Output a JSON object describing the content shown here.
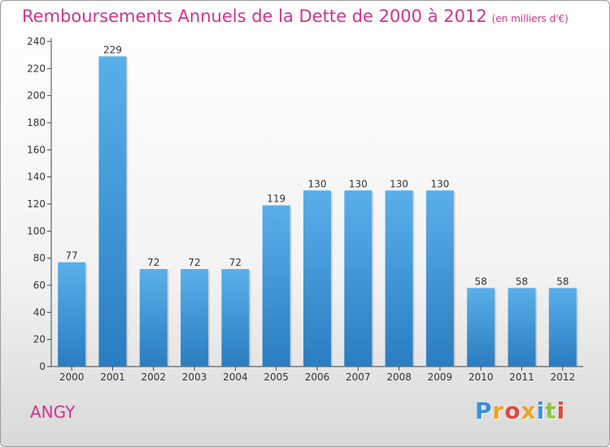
{
  "chart_data": {
    "type": "bar",
    "title": "Remboursements Annuels de la Dette de 2000 à 2012",
    "subtitle": "(en milliers d'€)",
    "categories": [
      "2000",
      "2001",
      "2002",
      "2003",
      "2004",
      "2005",
      "2006",
      "2007",
      "2008",
      "2009",
      "2010",
      "2011",
      "2012"
    ],
    "values": [
      77,
      229,
      72,
      72,
      72,
      119,
      130,
      130,
      130,
      130,
      58,
      58,
      58
    ],
    "ylim": [
      0,
      240
    ],
    "yticks": [
      0,
      20,
      40,
      60,
      80,
      100,
      120,
      140,
      160,
      180,
      200,
      220,
      240
    ],
    "grid": false,
    "bar_color_top": "#5aafea",
    "bar_color_bottom": "#2a7dc0"
  },
  "commune": "ANGY",
  "logo": {
    "text": "Proxiti",
    "colors": [
      "#3a8fd8",
      "#f0a020",
      "#e04a3a",
      "#f0a020",
      "#3a8fd8",
      "#8cc63f",
      "#e04a3a"
    ]
  }
}
